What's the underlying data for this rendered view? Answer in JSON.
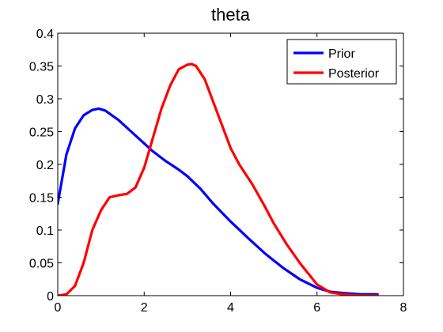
{
  "chart_data": {
    "type": "line",
    "title": "theta",
    "xlabel": "",
    "ylabel": "",
    "xlim": [
      0,
      8
    ],
    "ylim": [
      0,
      0.4
    ],
    "xticks": [
      0,
      2,
      4,
      6,
      8
    ],
    "xtick_labels": [
      "0",
      "2",
      "4",
      "6",
      "8"
    ],
    "yticks": [
      0,
      0.05,
      0.1,
      0.15,
      0.2,
      0.25,
      0.3,
      0.35,
      0.4
    ],
    "ytick_labels": [
      "0",
      "0.05",
      "0.1",
      "0.15",
      "0.2",
      "0.25",
      "0.3",
      "0.35",
      "0.4"
    ],
    "grid": false,
    "legend_position": "top-right",
    "series": [
      {
        "name": "Prior",
        "color": "#0000ff",
        "x": [
          0,
          0.2,
          0.4,
          0.6,
          0.8,
          0.95,
          1.1,
          1.4,
          1.7,
          2.0,
          2.2,
          2.5,
          2.8,
          3.0,
          3.3,
          3.6,
          4.0,
          4.4,
          4.8,
          5.2,
          5.6,
          6.0,
          6.3,
          6.6,
          7.0,
          7.4
        ],
        "y": [
          0.14,
          0.215,
          0.255,
          0.275,
          0.283,
          0.285,
          0.282,
          0.268,
          0.25,
          0.232,
          0.22,
          0.205,
          0.192,
          0.182,
          0.163,
          0.14,
          0.113,
          0.088,
          0.064,
          0.043,
          0.025,
          0.012,
          0.006,
          0.004,
          0.002,
          0.002
        ]
      },
      {
        "name": "Posterior",
        "color": "#ff0000",
        "x": [
          0,
          0.2,
          0.4,
          0.6,
          0.8,
          1.0,
          1.2,
          1.4,
          1.6,
          1.8,
          2.0,
          2.2,
          2.4,
          2.6,
          2.8,
          3.0,
          3.1,
          3.2,
          3.4,
          3.6,
          3.8,
          4.0,
          4.2,
          4.5,
          4.8,
          5.0,
          5.3,
          5.6,
          6.0,
          6.3,
          6.6,
          7.0,
          7.4
        ],
        "y": [
          0.0,
          0.002,
          0.015,
          0.05,
          0.1,
          0.13,
          0.15,
          0.153,
          0.155,
          0.165,
          0.195,
          0.24,
          0.285,
          0.32,
          0.345,
          0.352,
          0.353,
          0.35,
          0.33,
          0.295,
          0.26,
          0.225,
          0.2,
          0.17,
          0.135,
          0.11,
          0.078,
          0.05,
          0.017,
          0.005,
          0.002,
          0.0,
          0.0
        ]
      }
    ]
  }
}
